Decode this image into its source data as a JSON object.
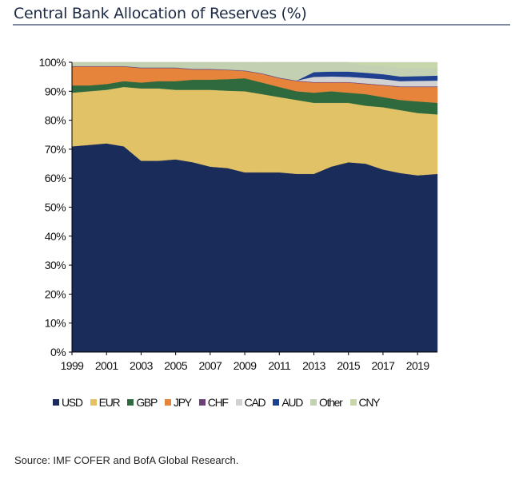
{
  "title": "Central Bank Allocation of Reserves (%)",
  "source": "Source: IMF COFER and BofA Global Research.",
  "chart_data": {
    "type": "area",
    "stacked": true,
    "title": "Central Bank Allocation of Reserves (%)",
    "xlabel": "",
    "ylabel": "",
    "x": [
      1999,
      2000,
      2001,
      2002,
      2003,
      2004,
      2005,
      2006,
      2007,
      2008,
      2009,
      2010,
      2011,
      2012,
      2013,
      2014,
      2015,
      2016,
      2017,
      2018,
      2019,
      2020
    ],
    "xticks": [
      "1999",
      "2001",
      "2003",
      "2005",
      "2007",
      "2009",
      "2011",
      "2013",
      "2015",
      "2017",
      "2019"
    ],
    "yticks": [
      "0%",
      "10%",
      "20%",
      "30%",
      "40%",
      "50%",
      "60%",
      "70%",
      "80%",
      "90%",
      "100%"
    ],
    "ylim": [
      0,
      100
    ],
    "grid": false,
    "legend_position": "bottom",
    "series": [
      {
        "name": "USD",
        "color": "#1a2d5a",
        "values": [
          71,
          71.5,
          72,
          71,
          66,
          66,
          66.5,
          65.5,
          64,
          63.5,
          62,
          62,
          62,
          61.5,
          61.5,
          64,
          65.5,
          65,
          63,
          61.8,
          61,
          61.5
        ]
      },
      {
        "name": "EUR",
        "color": "#e2c266",
        "values": [
          18.5,
          18.5,
          18.5,
          20.5,
          25,
          25,
          24,
          25,
          26.5,
          26.7,
          28,
          27,
          26,
          25.5,
          24.5,
          22,
          20.5,
          20,
          21.5,
          21.7,
          21.5,
          20.5
        ]
      },
      {
        "name": "GBP",
        "color": "#2e6a3e",
        "values": [
          2.5,
          2,
          2,
          2,
          2,
          2.5,
          3,
          3.5,
          3.5,
          4,
          4.5,
          4,
          3.5,
          3,
          3.5,
          4,
          3.5,
          4,
          3.5,
          3.5,
          4,
          4
        ]
      },
      {
        "name": "JPY",
        "color": "#e5843a",
        "values": [
          6.5,
          6.5,
          6,
          5,
          5,
          4.5,
          4.5,
          3.5,
          3.5,
          3.1,
          2.5,
          3,
          3,
          3.5,
          3.5,
          3,
          3.5,
          3.5,
          4,
          4.5,
          5,
          5.5
        ]
      },
      {
        "name": "CHF",
        "color": "#6b3f7a",
        "values": [
          0.2,
          0.2,
          0.2,
          0.2,
          0.2,
          0.2,
          0.2,
          0.2,
          0.2,
          0.2,
          0.2,
          0.2,
          0.2,
          0.2,
          0.2,
          0.2,
          0.2,
          0.2,
          0.2,
          0.2,
          0.2,
          0.2
        ]
      },
      {
        "name": "CAD",
        "color": "#d2d2d2",
        "values": [
          0,
          0,
          0,
          0,
          0,
          0,
          0,
          0,
          0,
          0,
          0,
          0,
          0,
          0,
          1.8,
          1.9,
          1.8,
          1.9,
          2.0,
          1.8,
          1.9,
          2.0
        ]
      },
      {
        "name": "AUD",
        "color": "#1f3f8f",
        "values": [
          0,
          0,
          0,
          0,
          0,
          0,
          0,
          0,
          0,
          0,
          0,
          0,
          0,
          0,
          1.6,
          1.7,
          1.8,
          1.8,
          1.7,
          1.6,
          1.6,
          1.7
        ]
      },
      {
        "name": "Other",
        "color": "#c3d1b2",
        "values": [
          1.3,
          1.3,
          1.3,
          1.3,
          1.8,
          1.8,
          1.8,
          2.3,
          2.3,
          2.5,
          2.8,
          3.8,
          5.3,
          6.3,
          3.4,
          3.2,
          3.2,
          2.5,
          2.9,
          3.0,
          2.8,
          2.5
        ]
      },
      {
        "name": "CNY",
        "color": "#c8d6ad",
        "values": [
          0,
          0,
          0,
          0,
          0,
          0,
          0,
          0,
          0,
          0,
          0,
          0,
          0,
          0,
          0,
          0,
          0,
          1.1,
          1.2,
          1.9,
          2.0,
          2.1
        ]
      }
    ]
  }
}
